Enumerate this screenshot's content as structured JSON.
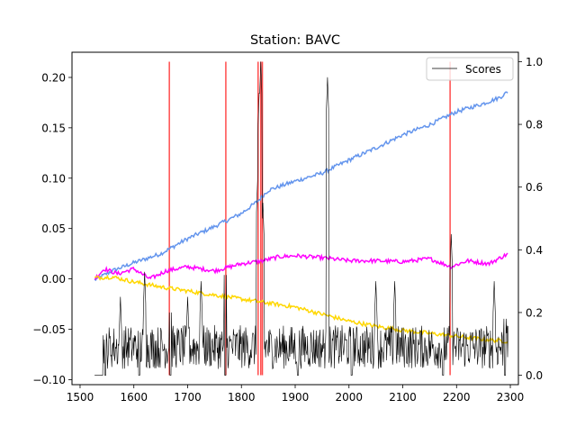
{
  "chart_data": {
    "type": "line",
    "title": "Station: BAVC",
    "xlabel": "",
    "ylabel_left": "",
    "ylabel_right": "",
    "xlim": [
      1485,
      2315
    ],
    "ylim_left": [
      -0.105,
      0.225
    ],
    "ylim_right": [
      -0.03,
      1.03
    ],
    "x_ticks": [
      1500,
      1600,
      1700,
      1800,
      1900,
      2000,
      2100,
      2200,
      2300
    ],
    "y_ticks_left": [
      -0.1,
      -0.05,
      0.0,
      0.05,
      0.1,
      0.15,
      0.2
    ],
    "y_tick_labels_left": [
      "−0.10",
      "−0.05",
      "0.00",
      "0.05",
      "0.10",
      "0.15",
      "0.20"
    ],
    "y_ticks_right": [
      0.0,
      0.2,
      0.4,
      0.6,
      0.8,
      1.0
    ],
    "y_tick_labels_right": [
      "0.0",
      "0.2",
      "0.4",
      "0.6",
      "0.8",
      "1.0"
    ],
    "grid": false,
    "legend": {
      "position": "top-right",
      "entries": [
        "Scores"
      ]
    },
    "x_range": [
      1527,
      2296
    ],
    "series": [
      {
        "name": "",
        "axis": "left",
        "color": "#6495ED",
        "points": [
          [
            1527,
            -0.001
          ],
          [
            1560,
            0.008
          ],
          [
            1600,
            0.016
          ],
          [
            1650,
            0.025
          ],
          [
            1700,
            0.04
          ],
          [
            1750,
            0.052
          ],
          [
            1800,
            0.065
          ],
          [
            1830,
            0.077
          ],
          [
            1850,
            0.088
          ],
          [
            1900,
            0.097
          ],
          [
            1950,
            0.105
          ],
          [
            2000,
            0.118
          ],
          [
            2050,
            0.13
          ],
          [
            2100,
            0.143
          ],
          [
            2150,
            0.153
          ],
          [
            2200,
            0.166
          ],
          [
            2250,
            0.174
          ],
          [
            2280,
            0.18
          ],
          [
            2296,
            0.186
          ]
        ]
      },
      {
        "name": "",
        "axis": "left",
        "color": "#FF00FF",
        "points": [
          [
            1527,
            0.0
          ],
          [
            1545,
            0.01
          ],
          [
            1570,
            0.005
          ],
          [
            1600,
            0.01
          ],
          [
            1630,
            0.0
          ],
          [
            1660,
            0.008
          ],
          [
            1700,
            0.012
          ],
          [
            1750,
            0.008
          ],
          [
            1800,
            0.015
          ],
          [
            1840,
            0.018
          ],
          [
            1870,
            0.022
          ],
          [
            1900,
            0.023
          ],
          [
            1950,
            0.021
          ],
          [
            2000,
            0.018
          ],
          [
            2050,
            0.018
          ],
          [
            2100,
            0.017
          ],
          [
            2150,
            0.02
          ],
          [
            2190,
            0.012
          ],
          [
            2220,
            0.018
          ],
          [
            2260,
            0.015
          ],
          [
            2296,
            0.025
          ]
        ]
      },
      {
        "name": "",
        "axis": "left",
        "color": "#FFD700",
        "points": [
          [
            1527,
            0.001
          ],
          [
            1560,
            0.002
          ],
          [
            1600,
            -0.003
          ],
          [
            1650,
            -0.008
          ],
          [
            1700,
            -0.012
          ],
          [
            1750,
            -0.016
          ],
          [
            1800,
            -0.02
          ],
          [
            1850,
            -0.024
          ],
          [
            1900,
            -0.028
          ],
          [
            1950,
            -0.035
          ],
          [
            2000,
            -0.042
          ],
          [
            2050,
            -0.047
          ],
          [
            2100,
            -0.051
          ],
          [
            2150,
            -0.054
          ],
          [
            2200,
            -0.057
          ],
          [
            2250,
            -0.06
          ],
          [
            2296,
            -0.062
          ]
        ]
      },
      {
        "name": "Scores",
        "axis": "right",
        "color": "#000000",
        "baseline": 0.09,
        "noise": 0.07,
        "peaks": [
          [
            1528,
            0.0
          ],
          [
            1542,
            0.0
          ],
          [
            1575,
            0.25
          ],
          [
            1620,
            0.33
          ],
          [
            1668,
            0.3
          ],
          [
            1700,
            0.25
          ],
          [
            1725,
            0.3
          ],
          [
            1770,
            0.42
          ],
          [
            1830,
            0.62
          ],
          [
            1833,
            0.9
          ],
          [
            1836,
            1.0
          ],
          [
            1840,
            0.55
          ],
          [
            1960,
            0.95
          ],
          [
            2050,
            0.3
          ],
          [
            2085,
            0.3
          ],
          [
            2190,
            0.45
          ],
          [
            2270,
            0.3
          ],
          [
            2290,
            0.28
          ]
        ],
        "dips": [
          1547,
          1610,
          1668,
          1770,
          1905,
          2005,
          2175,
          2290
        ]
      }
    ],
    "vertical_lines": {
      "color": "#FF0000",
      "x": [
        1666,
        1771,
        1831,
        1836,
        1839,
        2188
      ],
      "y_range_right": [
        0.0,
        1.0
      ]
    }
  }
}
